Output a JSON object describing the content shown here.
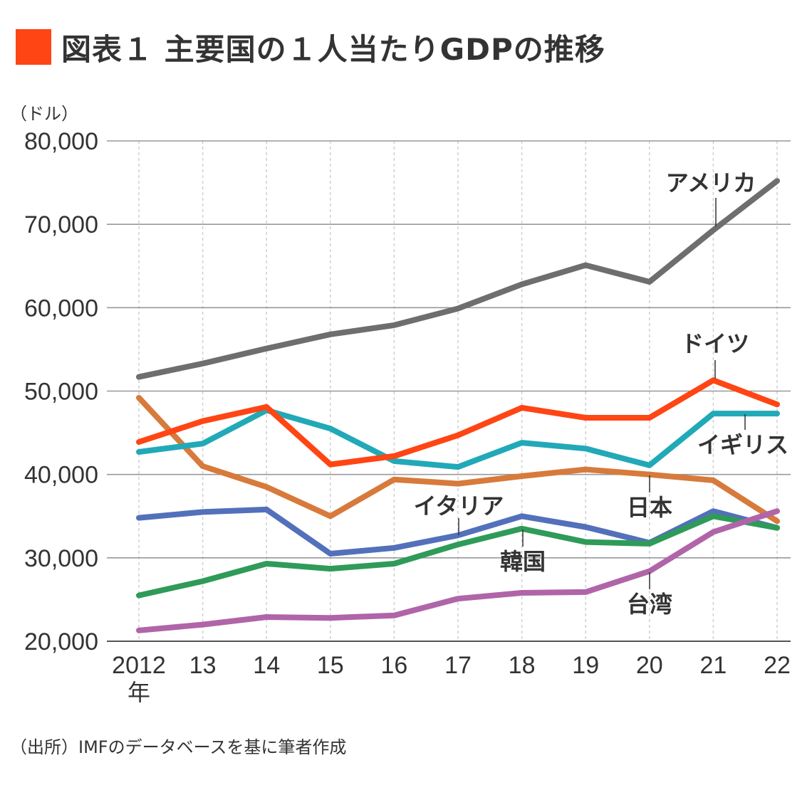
{
  "title": "図表１ 主要国の１人当たりGDPの推移",
  "accent_color": "#FF4514",
  "unit_label": "（ドル）",
  "source": "（出所）IMFのデータベースを基に筆者作成",
  "chart_data": {
    "type": "line",
    "title": "図表１ 主要国の１人当たりGDPの推移",
    "xlabel": "",
    "ylabel": "（ドル）",
    "ylim": [
      20000,
      80000
    ],
    "yticks": [
      20000,
      30000,
      40000,
      50000,
      60000,
      70000,
      80000
    ],
    "ytick_labels": [
      "20,000",
      "30,000",
      "40,000",
      "50,000",
      "60,000",
      "70,000",
      "80,000"
    ],
    "x": [
      2012,
      2013,
      2014,
      2015,
      2016,
      2017,
      2018,
      2019,
      2020,
      2021,
      2022
    ],
    "x_labels": [
      "2012",
      "13",
      "14",
      "15",
      "16",
      "17",
      "18",
      "19",
      "20",
      "21",
      "22"
    ],
    "x_first_suffix": "年",
    "grid": true,
    "series": [
      {
        "name": "アメリカ",
        "color": "#6E6E6E",
        "values": [
          51700,
          53300,
          55100,
          56800,
          57900,
          59900,
          62800,
          65100,
          63100,
          69300,
          75200
        ]
      },
      {
        "name": "ドイツ",
        "color": "#FF4514",
        "values": [
          43900,
          46400,
          48100,
          41200,
          42200,
          44700,
          48000,
          46800,
          46800,
          51300,
          48400
        ]
      },
      {
        "name": "イギリス",
        "color": "#21A9B8",
        "values": [
          42700,
          43700,
          47700,
          45500,
          41600,
          40900,
          43800,
          43100,
          41100,
          47300,
          47300
        ]
      },
      {
        "name": "日本",
        "color": "#D77A3B",
        "values": [
          49200,
          41000,
          38500,
          35000,
          39400,
          38900,
          39800,
          40600,
          40000,
          39300,
          34400
        ]
      },
      {
        "name": "イタリア",
        "color": "#5370BB",
        "values": [
          34800,
          35500,
          35800,
          30500,
          31200,
          32700,
          35000,
          33700,
          31800,
          35600,
          33600
        ]
      },
      {
        "name": "韓国",
        "color": "#2F9B58",
        "values": [
          25500,
          27200,
          29300,
          28700,
          29300,
          31600,
          33500,
          31900,
          31700,
          35000,
          33600
        ]
      },
      {
        "name": "台湾",
        "color": "#B065A8",
        "values": [
          21300,
          22000,
          22900,
          22800,
          23100,
          25100,
          25800,
          25900,
          28400,
          33100,
          35600
        ]
      }
    ],
    "annotations": [
      {
        "series": "アメリカ",
        "text": "アメリカ"
      },
      {
        "series": "ドイツ",
        "text": "ドイツ"
      },
      {
        "series": "イギリス",
        "text": "イギリス"
      },
      {
        "series": "日本",
        "text": "日本"
      },
      {
        "series": "イタリア",
        "text": "イタリア"
      },
      {
        "series": "韓国",
        "text": "韓国"
      },
      {
        "series": "台湾",
        "text": "台湾"
      }
    ]
  }
}
